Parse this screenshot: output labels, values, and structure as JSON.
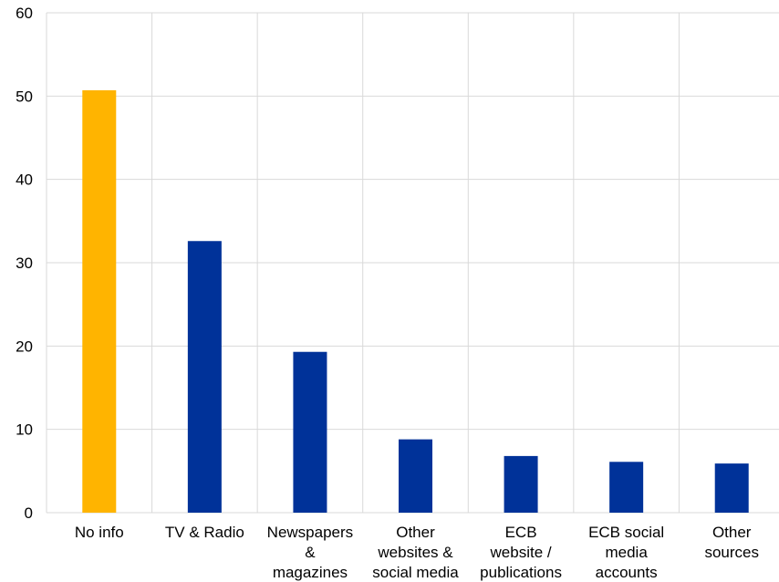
{
  "chart_data": {
    "type": "bar",
    "categories": [
      [
        "No info"
      ],
      [
        "TV & Radio"
      ],
      [
        "Newspapers",
        "&",
        "magazines"
      ],
      [
        "Other",
        "websites &",
        "social media"
      ],
      [
        "ECB",
        "website /",
        "publications"
      ],
      [
        "ECB social",
        "media",
        "accounts"
      ],
      [
        "Other",
        "sources"
      ]
    ],
    "values": [
      50.7,
      32.6,
      19.3,
      8.8,
      6.8,
      6.1,
      5.9
    ],
    "bar_colors": [
      "#ffb400",
      "#003299",
      "#003299",
      "#003299",
      "#003299",
      "#003299",
      "#003299"
    ],
    "ylim": [
      0,
      60
    ],
    "yticks": [
      0,
      10,
      20,
      30,
      40,
      50,
      60
    ],
    "grid": true,
    "title": "",
    "xlabel": "",
    "ylabel": ""
  }
}
